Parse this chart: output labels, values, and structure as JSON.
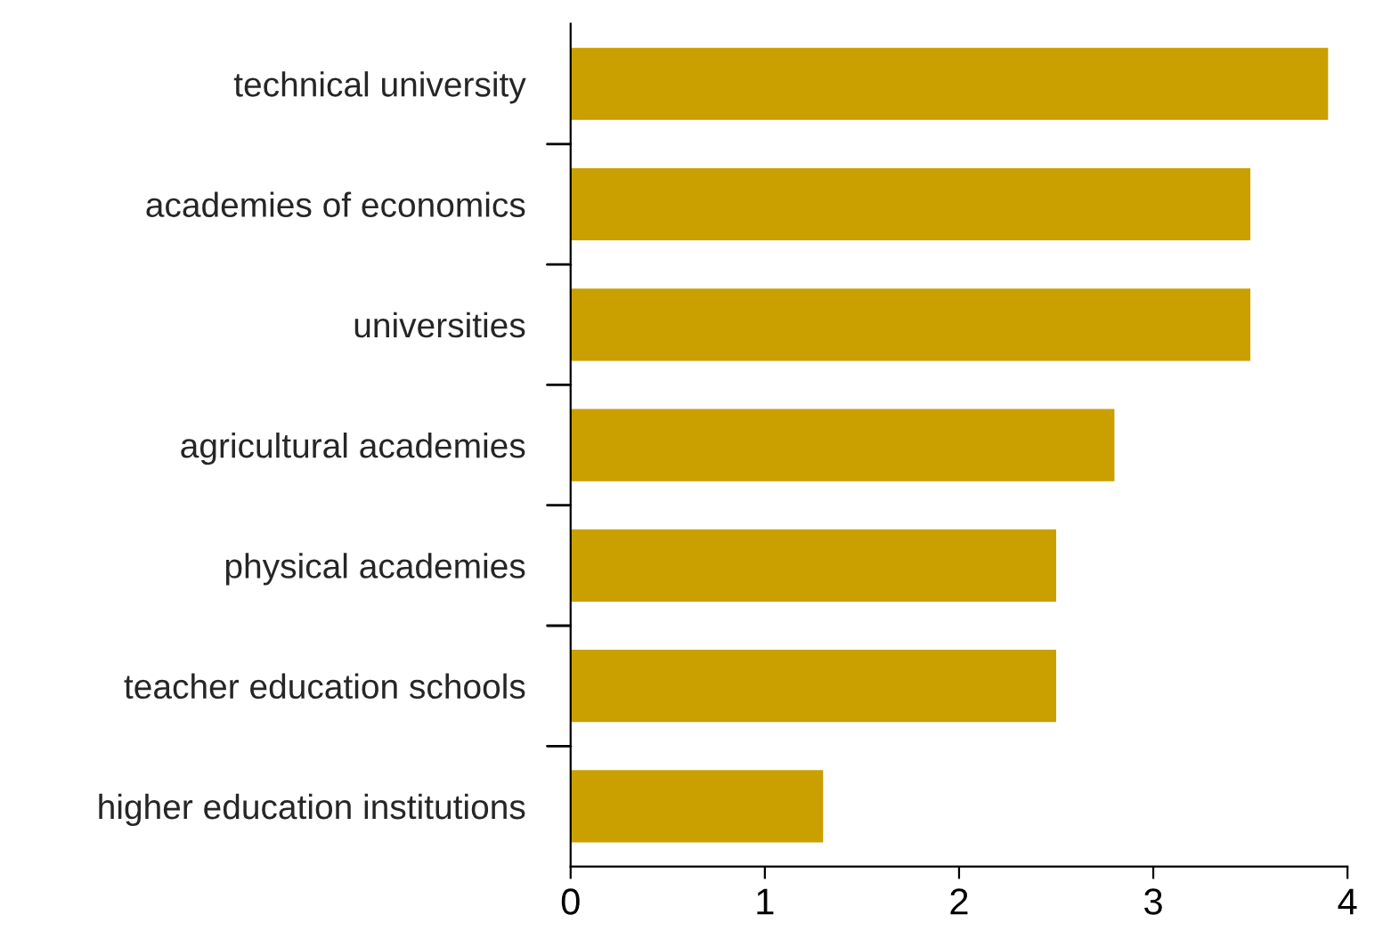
{
  "chart_data": {
    "type": "bar",
    "orientation": "horizontal",
    "categories": [
      "technical university",
      "academies of economics",
      "universities",
      "agricultural academies",
      "physical academies",
      "teacher education schools",
      "higher education institutions"
    ],
    "values": [
      3.9,
      3.5,
      3.5,
      2.8,
      2.5,
      2.5,
      1.3
    ],
    "color": "#c9a000",
    "xlim": [
      0,
      4
    ],
    "xticks": [
      0,
      1,
      2,
      3,
      4
    ],
    "grid": false
  }
}
